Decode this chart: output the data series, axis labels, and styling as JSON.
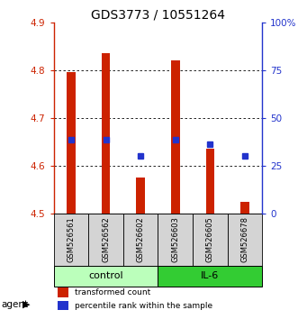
{
  "title": "GDS3773 / 10551264",
  "samples": [
    "GSM526561",
    "GSM526562",
    "GSM526602",
    "GSM526603",
    "GSM526605",
    "GSM526678"
  ],
  "red_bar_bottom": [
    4.5,
    4.5,
    4.5,
    4.5,
    4.5,
    4.5
  ],
  "red_bar_top": [
    4.795,
    4.835,
    4.575,
    4.82,
    4.635,
    4.525
  ],
  "blue_dot_y": [
    4.655,
    4.655,
    4.62,
    4.655,
    4.645,
    4.62
  ],
  "ylim": [
    4.5,
    4.9
  ],
  "yticks_left": [
    4.5,
    4.6,
    4.7,
    4.8,
    4.9
  ],
  "right_yticks_pct": [
    0,
    25,
    50,
    75,
    100
  ],
  "right_ytick_labels": [
    "0",
    "25",
    "50",
    "75",
    "100%"
  ],
  "bar_color": "#cc2200",
  "dot_color": "#2233cc",
  "control_color": "#bbffbb",
  "il6_color": "#33cc33",
  "control_label": "control",
  "il6_label": "IL-6",
  "agent_label": "agent",
  "legend_red": "transformed count",
  "legend_blue": "percentile rank within the sample",
  "bar_width": 0.25,
  "title_fontsize": 10,
  "tick_fontsize": 7.5,
  "sample_fontsize": 6,
  "group_fontsize": 8,
  "legend_fontsize": 6.5
}
